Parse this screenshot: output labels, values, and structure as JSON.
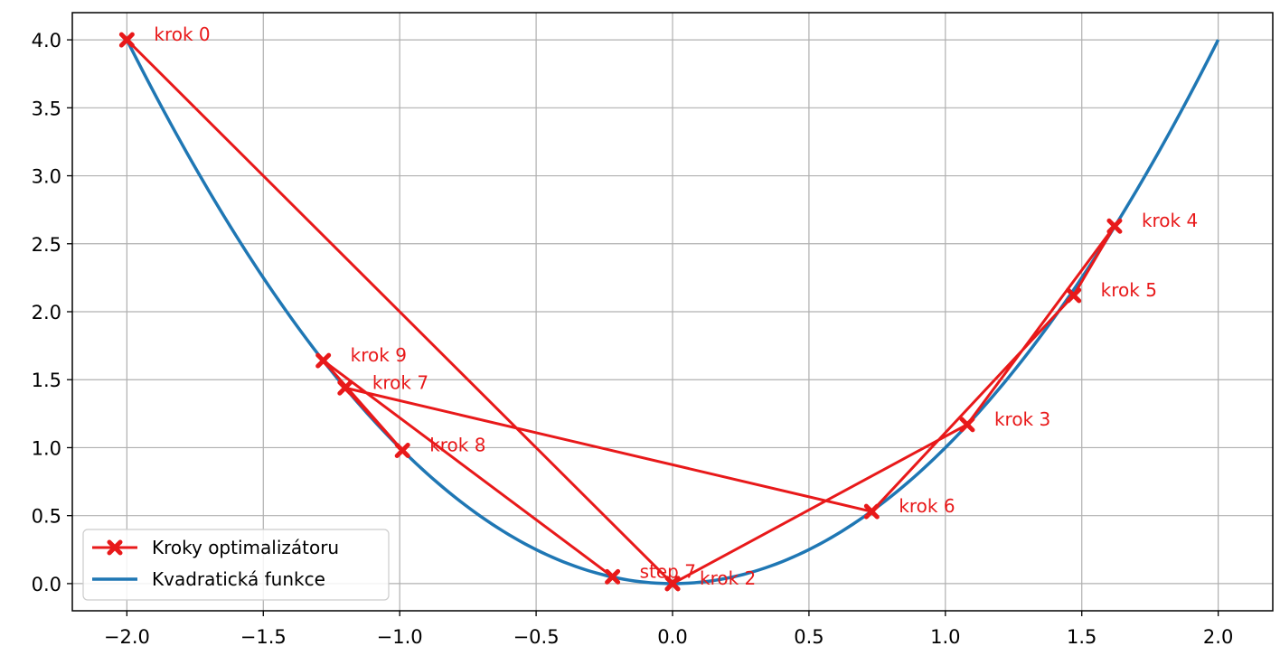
{
  "chart_data": {
    "type": "line",
    "xlim": [
      -2.2,
      2.2
    ],
    "ylim": [
      -0.2,
      4.2
    ],
    "x_ticks": [
      -2.0,
      -1.5,
      -1.0,
      -0.5,
      0.0,
      0.5,
      1.0,
      1.5,
      2.0
    ],
    "x_tick_labels": [
      "−2.0",
      "−1.5",
      "−1.0",
      "−0.5",
      "0.0",
      "0.5",
      "1.0",
      "1.5",
      "2.0"
    ],
    "y_ticks": [
      0.0,
      0.5,
      1.0,
      1.5,
      2.0,
      2.5,
      3.0,
      3.5,
      4.0
    ],
    "y_tick_labels": [
      "0.0",
      "0.5",
      "1.0",
      "1.5",
      "2.0",
      "2.5",
      "3.0",
      "3.5",
      "4.0"
    ],
    "grid": true,
    "legend_position": "lower-left",
    "series": [
      {
        "name": "Kroky optimalizátoru",
        "kind": "line-with-x-markers",
        "color": "#e8191a",
        "points": [
          {
            "x": -2.0,
            "y": 4.0,
            "label": "krok 0"
          },
          {
            "x": 0.0,
            "y": 0.0,
            "label": ""
          },
          {
            "x": 0.0,
            "y": 0.0,
            "label": "krok 2"
          },
          {
            "x": 1.08,
            "y": 1.17,
            "label": "krok 3"
          },
          {
            "x": 1.62,
            "y": 2.63,
            "label": "krok 4"
          },
          {
            "x": 1.47,
            "y": 2.12,
            "label": "krok 5"
          },
          {
            "x": 0.73,
            "y": 0.53,
            "label": "krok 6"
          },
          {
            "x": -1.2,
            "y": 1.44,
            "label": "krok 7"
          },
          {
            "x": -0.99,
            "y": 0.98,
            "label": "krok 8"
          },
          {
            "x": -1.28,
            "y": 1.64,
            "label": "krok 9"
          },
          {
            "x": -0.22,
            "y": 0.05,
            "label": "step 7"
          }
        ]
      },
      {
        "name": "Kvadratická funkce",
        "kind": "function",
        "function": "y = x^2",
        "domain": [
          -2.0,
          2.0
        ],
        "color": "#1f77b4"
      }
    ]
  }
}
